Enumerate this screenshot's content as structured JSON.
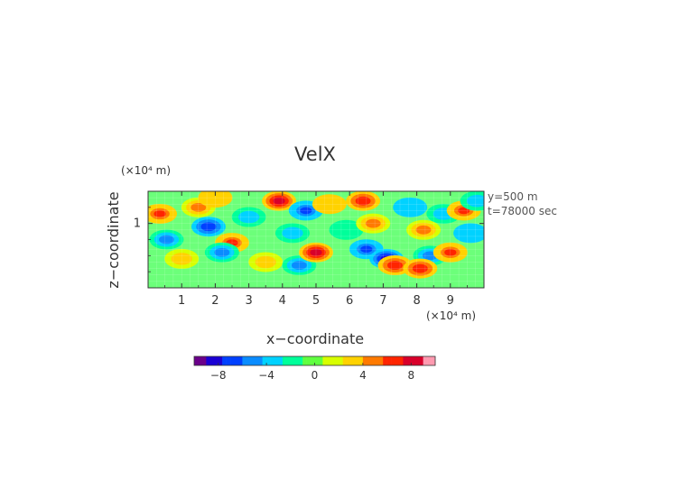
{
  "chart_data": {
    "type": "heatmap",
    "title": "VelX",
    "xlabel": "x−coordinate",
    "ylabel": "z−coordinate",
    "x_unit": "(×10⁴ m)",
    "y_unit": "(×10⁴ m)",
    "xlim": [
      0,
      10
    ],
    "ylim": [
      0,
      1.5
    ],
    "x_ticks": [
      "1",
      "2",
      "3",
      "4",
      "5",
      "6",
      "7",
      "8",
      "9"
    ],
    "y_ticks": [
      "1"
    ],
    "annotations": [
      "y=500 m",
      "t=78000 sec"
    ],
    "colorbar": {
      "range": [
        -10,
        10
      ],
      "tick_values": [
        -8,
        -4,
        0,
        4,
        8
      ],
      "tick_labels": [
        "−8",
        "−4",
        "0",
        "4",
        "8"
      ]
    },
    "blobs": [
      {
        "x": 0.35,
        "z": 1.15,
        "v": 7
      },
      {
        "x": 0.55,
        "z": 0.75,
        "v": -5
      },
      {
        "x": 1.0,
        "z": 0.45,
        "v": 3
      },
      {
        "x": 1.5,
        "z": 1.25,
        "v": 5
      },
      {
        "x": 1.8,
        "z": 0.95,
        "v": -6
      },
      {
        "x": 2.0,
        "z": 1.4,
        "v": 4
      },
      {
        "x": 2.5,
        "z": 0.7,
        "v": 7
      },
      {
        "x": 2.2,
        "z": 0.55,
        "v": -5
      },
      {
        "x": 3.0,
        "z": 1.1,
        "v": -3
      },
      {
        "x": 3.5,
        "z": 0.4,
        "v": 3
      },
      {
        "x": 3.9,
        "z": 1.35,
        "v": 8
      },
      {
        "x": 4.3,
        "z": 0.85,
        "v": -3
      },
      {
        "x": 4.7,
        "z": 1.2,
        "v": -7
      },
      {
        "x": 4.5,
        "z": 0.35,
        "v": -5
      },
      {
        "x": 5.0,
        "z": 0.55,
        "v": 8
      },
      {
        "x": 5.4,
        "z": 1.3,
        "v": 4
      },
      {
        "x": 5.9,
        "z": 0.9,
        "v": -2
      },
      {
        "x": 6.4,
        "z": 1.35,
        "v": 6
      },
      {
        "x": 6.7,
        "z": 1.0,
        "v": 5
      },
      {
        "x": 6.5,
        "z": 0.6,
        "v": -7
      },
      {
        "x": 7.1,
        "z": 0.45,
        "v": -8
      },
      {
        "x": 7.35,
        "z": 0.35,
        "v": 6
      },
      {
        "x": 7.8,
        "z": 1.25,
        "v": -4
      },
      {
        "x": 8.2,
        "z": 0.9,
        "v": 5
      },
      {
        "x": 8.4,
        "z": 0.5,
        "v": -5
      },
      {
        "x": 8.1,
        "z": 0.3,
        "v": 6
      },
      {
        "x": 8.8,
        "z": 1.15,
        "v": -3
      },
      {
        "x": 9.0,
        "z": 0.55,
        "v": 7
      },
      {
        "x": 9.4,
        "z": 1.2,
        "v": 7
      },
      {
        "x": 9.6,
        "z": 0.85,
        "v": -4
      },
      {
        "x": 9.8,
        "z": 1.35,
        "v": -3
      }
    ]
  },
  "colors": {
    "scale": [
      "#6a008a",
      "#1a00d4",
      "#0040ff",
      "#0a8cff",
      "#00d2ff",
      "#00ff9a",
      "#60ff40",
      "#d8ff00",
      "#ffd200",
      "#ff7a00",
      "#ff2400",
      "#d8002a",
      "#ff9ab0"
    ]
  }
}
